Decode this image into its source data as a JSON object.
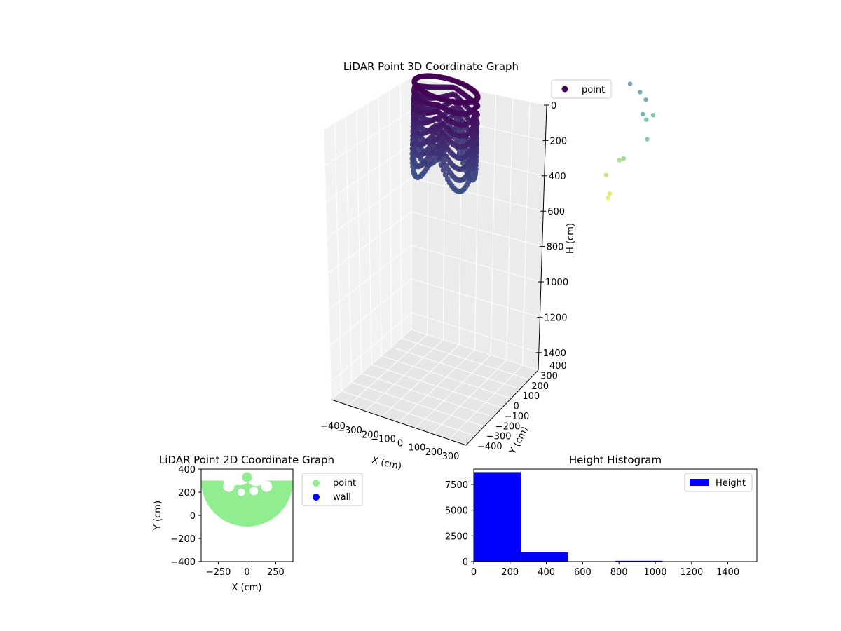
{
  "chart_data": [
    {
      "type": "scatter",
      "projection": "3d",
      "title": "LiDAR Point 3D Coordinate Graph",
      "xlabel": "X (cm)",
      "ylabel": "Y (cm)",
      "zlabel": "H (cm)",
      "xlim": [
        -400,
        400
      ],
      "ylim": [
        -400,
        400
      ],
      "zlim": [
        0,
        1500
      ],
      "z_inverted": true,
      "xticks": [
        "−400",
        "−300",
        "−200",
        "−100",
        "0",
        "100",
        "200",
        "300"
      ],
      "yticks": [
        "−400",
        "−300",
        "−200",
        "−100",
        "0",
        "100",
        "200",
        "300",
        "400"
      ],
      "zticks": [
        "0",
        "200",
        "400",
        "600",
        "800",
        "1000",
        "1200",
        "1400"
      ],
      "grid": true,
      "colormap": "viridis",
      "legend": {
        "placement": "upper-right",
        "entries": [
          "point"
        ]
      },
      "series": [
        {
          "name": "point",
          "description_values": {
            "wall_ring": {
              "x_range": [
                -300,
                350
              ],
              "y_range": [
                -100,
                400
              ],
              "h_range": [
                0,
                500
              ]
            },
            "scattered_points": [
              {
                "x": 250,
                "y": 300,
                "h": 20
              },
              {
                "x": 300,
                "y": 320,
                "h": 60
              },
              {
                "x": 320,
                "y": 350,
                "h": 110
              },
              {
                "x": 330,
                "y": 300,
                "h": 160
              },
              {
                "x": 350,
                "y": 380,
                "h": 200
              },
              {
                "x": 300,
                "y": 400,
                "h": 250
              },
              {
                "x": 350,
                "y": 320,
                "h": 300
              },
              {
                "x": 250,
                "y": 250,
                "h": 400
              },
              {
                "x": 200,
                "y": 300,
                "h": 450
              },
              {
                "x": 150,
                "y": 250,
                "h": 520
              },
              {
                "x": 200,
                "y": 200,
                "h": 580
              },
              {
                "x": 180,
                "y": 220,
                "h": 620
              }
            ]
          }
        }
      ]
    },
    {
      "type": "scatter",
      "title": "LiDAR Point 2D Coordinate Graph",
      "xlabel": "X (cm)",
      "ylabel": "Y (cm)",
      "xlim": [
        -400,
        400
      ],
      "ylim": [
        -400,
        400
      ],
      "xticks": [
        "−250",
        "0",
        "250"
      ],
      "yticks": [
        "400",
        "200",
        "0",
        "−200",
        "−400"
      ],
      "legend": {
        "placement": "outside-right",
        "entries": [
          "point",
          "wall"
        ]
      },
      "series": [
        {
          "name": "point",
          "color": "#90ee90",
          "shape": "half-disc",
          "center": [
            0,
            300
          ],
          "radius": 400
        },
        {
          "name": "wall",
          "color": "#0000ff",
          "values": []
        }
      ]
    },
    {
      "type": "bar",
      "title": "Height Histogram",
      "xlabel": "",
      "ylabel": "",
      "xlim": [
        0,
        1560
      ],
      "ylim": [
        0,
        9000
      ],
      "xticks": [
        "0",
        "200",
        "400",
        "600",
        "800",
        "1000",
        "1200",
        "1400"
      ],
      "yticks": [
        "0",
        "2500",
        "5000",
        "7500"
      ],
      "legend": {
        "placement": "upper-right",
        "entries": [
          "Height"
        ]
      },
      "series": [
        {
          "name": "Height",
          "color": "#0000ff",
          "bins": [
            {
              "x0": 0,
              "x1": 260,
              "count": 8700
            },
            {
              "x0": 260,
              "x1": 520,
              "count": 900
            },
            {
              "x0": 520,
              "x1": 780,
              "count": 5
            },
            {
              "x0": 780,
              "x1": 1040,
              "count": 80
            },
            {
              "x0": 1040,
              "x1": 1300,
              "count": 0
            },
            {
              "x0": 1300,
              "x1": 1560,
              "count": 0
            }
          ]
        }
      ]
    }
  ]
}
